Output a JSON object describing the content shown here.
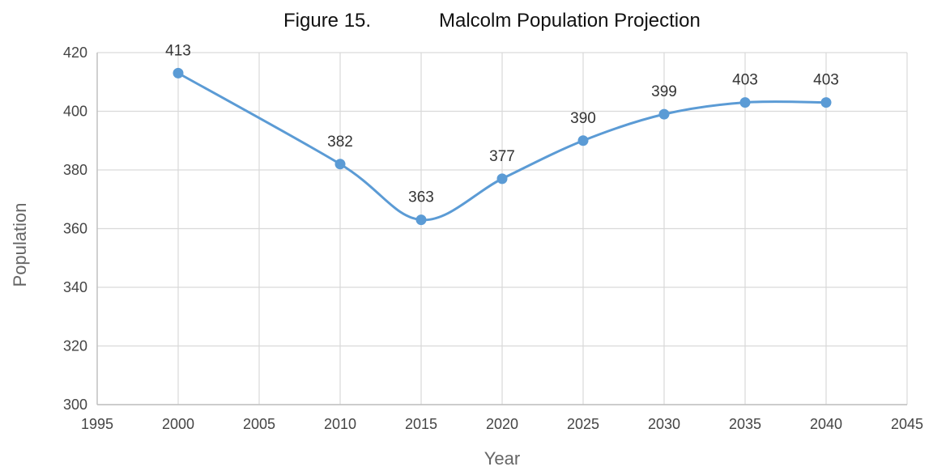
{
  "figure_label": "Figure 15.",
  "chart_data": {
    "type": "scatter",
    "title": "Malcolm Population Projection",
    "xlabel": "Year",
    "ylabel": "Population",
    "xlim": [
      1995,
      2045
    ],
    "ylim": [
      300,
      420
    ],
    "xticks": [
      1995,
      2000,
      2005,
      2010,
      2015,
      2020,
      2025,
      2030,
      2035,
      2040,
      2045
    ],
    "yticks": [
      300,
      320,
      340,
      360,
      380,
      400,
      420
    ],
    "grid": true,
    "line_style": "smooth",
    "series": [
      {
        "x": [
          2000,
          2010,
          2015,
          2020,
          2025,
          2030,
          2035,
          2040
        ],
        "y": [
          413,
          382,
          363,
          377,
          390,
          399,
          403,
          403
        ],
        "labels": [
          "413",
          "382",
          "363",
          "377",
          "390",
          "399",
          "403",
          "403"
        ],
        "color": "#5b9bd5"
      }
    ]
  }
}
